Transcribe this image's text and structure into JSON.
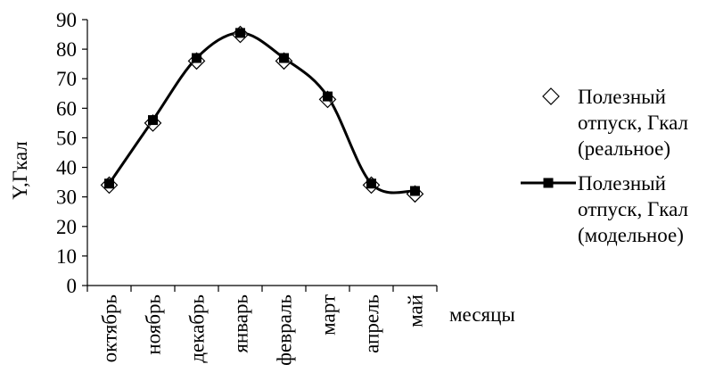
{
  "chart_data": {
    "type": "line",
    "title": "",
    "xlabel": "месяцы",
    "ylabel": "Y,Гкал",
    "ylim": [
      0,
      90
    ],
    "yticks": [
      0,
      10,
      20,
      30,
      40,
      50,
      60,
      70,
      80,
      90
    ],
    "categories": [
      "октябрь",
      "ноябрь",
      "декабрь",
      "январь",
      "февраль",
      "март",
      "апрель",
      "май"
    ],
    "grid": false,
    "legend_position": "right",
    "series": [
      {
        "name": "Полезный отпуск, Гкал (реальное)",
        "legend_lines": [
          "Полезный",
          "отпуск, Гкал",
          "(реальное)"
        ],
        "style": "markers",
        "marker": "diamond-open",
        "values": [
          34,
          55,
          76,
          85,
          76,
          63,
          34,
          31
        ]
      },
      {
        "name": "Полезный отпуск, Гкал (модельное)",
        "legend_lines": [
          "Полезный",
          "отпуск, Гкал",
          "(модельное)"
        ],
        "style": "smooth-line",
        "marker": "square-filled",
        "values": [
          34.5,
          56,
          77,
          85.5,
          77,
          64,
          34.5,
          32
        ]
      }
    ]
  }
}
